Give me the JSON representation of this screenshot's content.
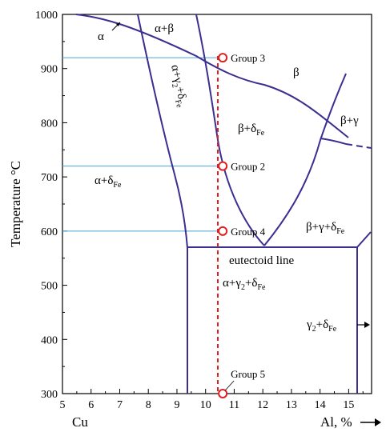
{
  "chart_data": {
    "type": "phase_diagram",
    "y_axis": {
      "title": "Temperature °C",
      "ticks": [
        "300",
        "400",
        "500",
        "600",
        "700",
        "800",
        "900",
        "1000"
      ],
      "range": [
        300,
        1000
      ]
    },
    "x_axis": {
      "ticks": [
        "5",
        "6",
        "7",
        "8",
        "9",
        "10",
        "11",
        "12",
        "13",
        "14",
        "15"
      ],
      "range": [
        5,
        15.8
      ],
      "left_label": "Cu",
      "right_label": "Al, %"
    },
    "regions": [
      {
        "id": "alpha",
        "text": "α"
      },
      {
        "id": "alpha_beta",
        "text": "α+β"
      },
      {
        "id": "beta",
        "text": "β"
      },
      {
        "id": "beta_gamma",
        "text": "β+γ"
      },
      {
        "id": "beta_delta",
        "text": "β+δ",
        "sub": "Fe"
      },
      {
        "id": "alpha_delta",
        "text": "α+δ",
        "sub": "Fe"
      },
      {
        "id": "alpha_gamma2_delta_rot",
        "text": "α+γ",
        "sub2": "2",
        "mid": "+δ",
        "sub": "Fe"
      },
      {
        "id": "beta_gamma_delta",
        "text": "β+γ+δ",
        "sub": "Fe"
      },
      {
        "id": "alpha_gamma2_delta",
        "text": "α+γ",
        "sub2": "2",
        "mid": "+δ",
        "sub": "Fe"
      },
      {
        "id": "gamma2_delta",
        "text": "γ",
        "sub2": "2",
        "mid": "+δ",
        "sub": "Fe"
      }
    ],
    "eutectoid_label": "eutectoid line",
    "eutectoid_temperature": 565,
    "composition_line": {
      "al_percent": 10.6
    },
    "isotherms": [
      920,
      720,
      600
    ],
    "groups": [
      {
        "label": "Group 3",
        "x": 10.6,
        "y": 920
      },
      {
        "label": "Group 2",
        "x": 10.6,
        "y": 720
      },
      {
        "label": "Group 4",
        "x": 10.6,
        "y": 600
      },
      {
        "label": "Group 5",
        "x": 10.6,
        "y": 300
      }
    ],
    "colors": {
      "phase_boundary": "#3a2f8f",
      "isotherm": "#4aa3d8",
      "composition_line": "#e02020"
    }
  }
}
